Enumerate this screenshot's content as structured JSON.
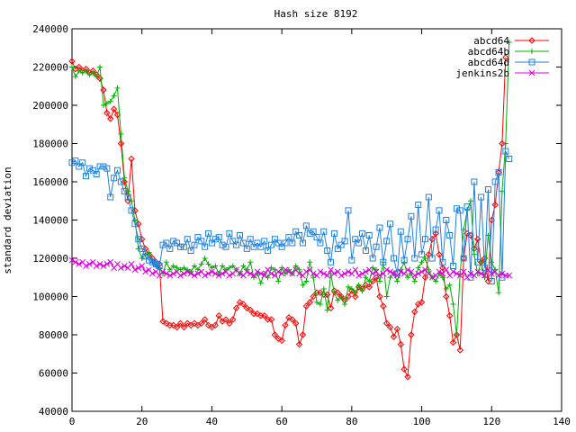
{
  "chart_data": {
    "type": "line",
    "title": "Hash size 8192",
    "xlabel": "",
    "ylabel": "standard deviation",
    "xlim": [
      0,
      140
    ],
    "ylim": [
      40000,
      240000
    ],
    "x_ticks": [
      0,
      20,
      40,
      60,
      80,
      100,
      120,
      140
    ],
    "y_ticks": [
      40000,
      60000,
      80000,
      100000,
      120000,
      140000,
      160000,
      180000,
      200000,
      220000,
      240000
    ],
    "x_tick_labels": [
      "0",
      "20",
      "40",
      "60",
      "80",
      "100",
      "120",
      "140"
    ],
    "y_tick_labels": [
      "40000",
      "60000",
      "80000",
      "100000",
      "120000",
      "140000",
      "160000",
      "180000",
      "200000",
      "220000",
      "240000"
    ],
    "grid": false,
    "legend_position": "top-right",
    "series": [
      {
        "name": "abcd64",
        "color": "#ff0000",
        "marker": "diamond",
        "values": [
          223000,
          219000,
          220000,
          218000,
          219000,
          217000,
          218000,
          216000,
          214000,
          208000,
          196000,
          193000,
          198000,
          195000,
          180000,
          160000,
          150000,
          172000,
          145000,
          138000,
          130000,
          125000,
          122000,
          120000,
          118000,
          117000,
          87000,
          86000,
          85000,
          85000,
          84000,
          86000,
          84000,
          86000,
          85000,
          86000,
          85000,
          86000,
          88000,
          85000,
          84000,
          85000,
          90000,
          87000,
          88000,
          86000,
          88000,
          94000,
          97000,
          96000,
          94000,
          93000,
          91000,
          91000,
          90000,
          90000,
          88000,
          88000,
          80000,
          78000,
          77000,
          85000,
          89000,
          88000,
          86000,
          75000,
          80000,
          95000,
          97000,
          100000,
          102000,
          102000,
          101000,
          101000,
          94000,
          103000,
          102000,
          100000,
          98000,
          100000,
          103000,
          100000,
          105000,
          104000,
          106000,
          105000,
          108000,
          110000,
          100000,
          95000,
          86000,
          84000,
          79000,
          83000,
          75000,
          62000,
          58000,
          80000,
          92000,
          96000,
          97000,
          110000,
          122000,
          130000,
          133000,
          122000,
          115000,
          100000,
          90000,
          76000,
          80000,
          72000,
          120000,
          133000,
          132000,
          125000,
          130000,
          118000,
          120000,
          108000,
          140000,
          148000,
          165000,
          180000,
          225000
        ]
      },
      {
        "name": "abcd64b",
        "color": "#00b000",
        "marker": "plus",
        "values": [
          220000,
          215000,
          218000,
          217000,
          218000,
          216000,
          217000,
          215000,
          220000,
          200000,
          201000,
          202000,
          205000,
          209000,
          185000,
          162000,
          155000,
          150000,
          140000,
          125000,
          120000,
          122000,
          123000,
          118000,
          116000,
          115000,
          112000,
          118000,
          114000,
          116000,
          115000,
          114000,
          115000,
          114000,
          113000,
          116000,
          114000,
          117000,
          120000,
          117000,
          115000,
          116000,
          112000,
          116000,
          114000,
          115000,
          116000,
          114000,
          112000,
          116000,
          114000,
          118000,
          110000,
          112000,
          107000,
          112000,
          110000,
          115000,
          114000,
          108000,
          115000,
          112000,
          114000,
          112000,
          116000,
          114000,
          106000,
          108000,
          118000,
          110000,
          97000,
          96000,
          104000,
          93000,
          112000,
          102000,
          98000,
          100000,
          96000,
          105000,
          104000,
          102000,
          106000,
          103000,
          110000,
          108000,
          115000,
          114000,
          108000,
          118000,
          100000,
          110000,
          112000,
          108000,
          114000,
          118000,
          110000,
          112000,
          108000,
          115000,
          118000,
          120000,
          114000,
          110000,
          108000,
          112000,
          110000,
          104000,
          106000,
          96000,
          80000,
          112000,
          135000,
          145000,
          150000,
          122000,
          112000,
          118000,
          110000,
          132000,
          118000,
          114000,
          102000,
          155000,
          180000,
          233000
        ]
      },
      {
        "name": "abcd64d",
        "color": "#2080e0",
        "marker": "square",
        "values": [
          170000,
          171000,
          168000,
          170000,
          163000,
          167000,
          166000,
          164000,
          168000,
          168000,
          167000,
          152000,
          162000,
          166000,
          160000,
          155000,
          152000,
          145000,
          138000,
          130000,
          125000,
          121000,
          119000,
          118000,
          117000,
          116000,
          127000,
          128000,
          125000,
          129000,
          128000,
          126000,
          126000,
          130000,
          124000,
          127000,
          131000,
          129000,
          126000,
          133000,
          128000,
          130000,
          131000,
          127000,
          126000,
          133000,
          129000,
          127000,
          132000,
          128000,
          125000,
          130000,
          126000,
          128000,
          126000,
          129000,
          124000,
          127000,
          130000,
          128000,
          126000,
          128000,
          131000,
          128000,
          134000,
          132000,
          128000,
          137000,
          133000,
          134000,
          131000,
          128000,
          134000,
          124000,
          118000,
          133000,
          125000,
          127000,
          129000,
          145000,
          119000,
          130000,
          128000,
          133000,
          124000,
          132000,
          120000,
          126000,
          136000,
          118000,
          129000,
          138000,
          120000,
          112000,
          134000,
          119000,
          130000,
          142000,
          120000,
          148000,
          122000,
          130000,
          152000,
          120000,
          135000,
          145000,
          118000,
          140000,
          132000,
          116000,
          146000,
          145000,
          120000,
          147000,
          110000,
          160000,
          118000,
          152000,
          115000,
          156000,
          108000,
          160000,
          165000,
          110000,
          176000,
          172000
        ]
      },
      {
        "name": "jenkins2b",
        "color": "#e000e0",
        "marker": "x",
        "values": [
          119000,
          118000,
          117000,
          118000,
          116000,
          117000,
          118000,
          116000,
          117000,
          116000,
          117000,
          118000,
          115000,
          117000,
          115000,
          116000,
          115000,
          117000,
          114000,
          115000,
          116000,
          113000,
          114000,
          112000,
          113000,
          111000,
          113000,
          112000,
          111000,
          112000,
          113000,
          111000,
          112000,
          113000,
          112000,
          111000,
          112000,
          113000,
          111000,
          112000,
          113000,
          112000,
          111000,
          112000,
          113000,
          111000,
          112000,
          114000,
          112000,
          111000,
          113000,
          112000,
          111000,
          113000,
          112000,
          111000,
          114000,
          112000,
          111000,
          113000,
          112000,
          114000,
          113000,
          112000,
          114000,
          112000,
          111000,
          113000,
          114000,
          112000,
          111000,
          113000,
          112000,
          111000,
          114000,
          112000,
          113000,
          111000,
          112000,
          113000,
          112000,
          114000,
          111000,
          112000,
          113000,
          114000,
          112000,
          113000,
          111000,
          112000,
          114000,
          113000,
          112000,
          111000,
          113000,
          112000,
          114000,
          113000,
          111000,
          112000,
          113000,
          114000,
          112000,
          110000,
          111000,
          113000,
          112000,
          114000,
          111000,
          113000,
          112000,
          111000,
          113000,
          110000,
          112000,
          111000,
          113000,
          112000,
          111000,
          114000,
          112000,
          113000,
          111000,
          112000,
          111000,
          111000
        ]
      }
    ]
  }
}
